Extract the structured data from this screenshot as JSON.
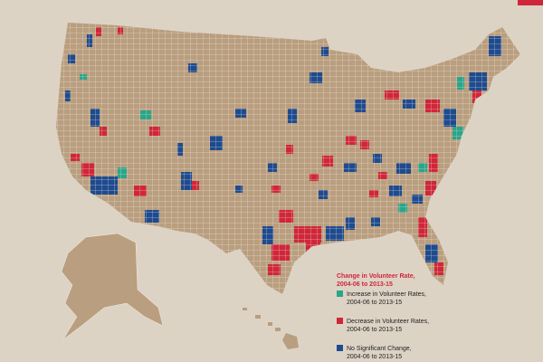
{
  "legend": {
    "title": [
      "Change in Volunteer Rate,",
      "2004-06 to 2013-15"
    ],
    "items": [
      {
        "label": [
          "Increase in Volunteer Rates,",
          "2004-06 to 2013-15"
        ],
        "color": "#2aa58a"
      },
      {
        "label": [
          "Decrease in Volunteer Rates,",
          "2004-06 to 2013-15"
        ],
        "color": "#d0263a"
      },
      {
        "label": [
          "No Significant Change,",
          "2004-06 to 2013-15"
        ],
        "color": "#1f4b8e"
      }
    ]
  }
}
